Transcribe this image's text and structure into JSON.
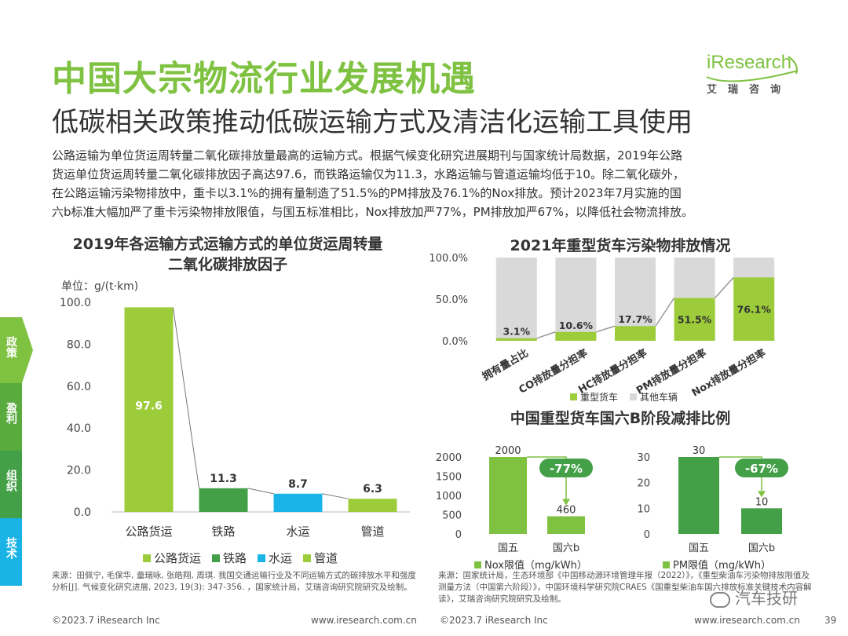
{
  "header": {
    "title": "中国大宗物流行业发展机遇",
    "subtitle": "低碳相关政策推动低碳运输方式及清洁化运输工具使用",
    "logo_text": "iResearch",
    "logo_sub": "艾瑞咨询"
  },
  "intro_lines": [
    "公路运输为单位货运周转量二氧化碳排放量最高的运输方式。根据气候变化研究进展期刊与国家统计局数据，2019年公路",
    "货运单位货运周转量二氧化碳排放因子高达97.6，而铁路运输仅为11.3，水路运输与管道运输均低于10。除二氧化碳外，",
    "在公路运输污染物排放中，重卡以3.1%的拥有量制造了51.5%的PM排放及76.1%的Nox排放。预计2023年7月实施的国",
    "六b标准大幅加严了重卡污染物排放限值，与国五标准相比，Nox排放加严77%，PM排放加严67%，以降低社会物流排放。"
  ],
  "side_tabs": [
    "政策",
    "盈利",
    "组织",
    "技术"
  ],
  "colors": {
    "green_light": "#9ccc3a",
    "green_mid": "#7fc242",
    "green_dark": "#43a047",
    "blue": "#1bb4e8",
    "gray": "#d9d9d9",
    "yellow": "#c6d94a"
  },
  "chart_data": [
    {
      "type": "bar",
      "title": "2019年各运输方式运输方式的单位货运周转量二氧化碳排放因子",
      "title_line1": "2019年各运输方式运输方式的单位货运周转量",
      "title_line2": "二氧化碳排放因子",
      "unit": "单位：g/(t·km)",
      "categories": [
        "公路货运",
        "铁路",
        "水运",
        "管道"
      ],
      "values": [
        97.6,
        11.3,
        8.7,
        6.3
      ],
      "value_labels": [
        "97.6",
        "11.3",
        "8.7",
        "6.3"
      ],
      "colors": [
        "#9ccc3a",
        "#43a047",
        "#1bb4e8",
        "#9ccc3a"
      ],
      "ylim": [
        0,
        100
      ],
      "yticks": [
        "0.0",
        "20.0",
        "40.0",
        "60.0",
        "80.0",
        "100.0"
      ],
      "legend": [
        "公路货运",
        "铁路",
        "水运",
        "管道"
      ]
    },
    {
      "type": "bar",
      "stacked": true,
      "title": "2021年重型货车污染物排放情况",
      "categories": [
        "拥有量占比",
        "CO排放量分担率",
        "HC排放量分担率",
        "PM排放量分担率",
        "Nox排放量分担率"
      ],
      "series": [
        {
          "name": "重型货车",
          "values": [
            3.1,
            10.6,
            17.7,
            51.5,
            76.1
          ]
        },
        {
          "name": "其他车辆",
          "values": [
            96.9,
            89.4,
            82.3,
            48.5,
            23.9
          ]
        }
      ],
      "value_labels": [
        "3.1%",
        "10.6%",
        "17.7%",
        "51.5%",
        "76.1%"
      ],
      "yticks": [
        "0.0%",
        "50.0%",
        "100.0%"
      ],
      "ylim": [
        0,
        100
      ],
      "legend": [
        "重型货车",
        "其他车辆"
      ]
    },
    {
      "type": "bar",
      "title": "中国重型货车国六B阶段减排比例",
      "categories": [
        "国五",
        "国六b"
      ],
      "values": [
        2000,
        460
      ],
      "value_labels": [
        "2000",
        "460"
      ],
      "ylim": [
        0,
        2000
      ],
      "yticks": [
        "0",
        "500",
        "1000",
        "1500",
        "2000"
      ],
      "change_label": "-77%",
      "legend": "Nox限值（mg/kWh）"
    },
    {
      "type": "bar",
      "categories": [
        "国五",
        "国六b"
      ],
      "values": [
        30,
        10
      ],
      "value_labels": [
        "30",
        "10"
      ],
      "ylim": [
        0,
        30
      ],
      "yticks": [
        "0",
        "10",
        "20",
        "30"
      ],
      "change_label": "-67%",
      "legend": "PM限值（mg/kWh）"
    }
  ],
  "sources": {
    "left": "来源：田佩宁, 毛保华, 童瑞咏, 张皓翔, 周琪. 我国交通运输行业及不同运输方式的碳排放水平和强度分析[J]. 气候变化研究进展, 2023, 19(3): 347-356. ，国家统计局，艾瑞咨询研究院研究及绘制。",
    "right": "来源：国家统计局，生态环境部《中国移动源环境管理年报（2022）》，《重型柴油车污染物排放限值及测量方法（中国第六阶段）》，中国环境科学研究院CRAES《国重型柴油车国六排放标准关键技术内容解读》，艾瑞咨询研究院研究及绘制。"
  },
  "footer": {
    "copyright": "©2023.7 iResearch Inc",
    "url": "www.iresearch.com.cn",
    "page": "39",
    "watermark": "汽车技研"
  }
}
